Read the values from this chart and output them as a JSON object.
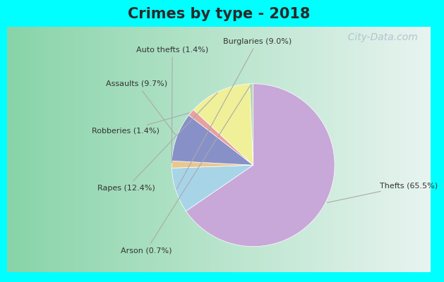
{
  "title": "Crimes by type - 2018",
  "title_fontsize": 15,
  "title_fontweight": "bold",
  "title_color": "#2a2a2a",
  "slices": [
    {
      "label": "Thefts (65.5%)",
      "value": 65.5,
      "color": "#C8A8D8"
    },
    {
      "label": "Burglaries (9.0%)",
      "value": 9.0,
      "color": "#A8D4E8"
    },
    {
      "label": "Auto thefts (1.4%)",
      "value": 1.4,
      "color": "#E8C890"
    },
    {
      "label": "Assaults (9.7%)",
      "value": 9.7,
      "color": "#8890C8"
    },
    {
      "label": "Robberies (1.4%)",
      "value": 1.4,
      "color": "#E8A0A0"
    },
    {
      "label": "Rapes (12.4%)",
      "value": 12.4,
      "color": "#F0F098"
    },
    {
      "label": "Arson (0.7%)",
      "value": 0.7,
      "color": "#B8D8B0"
    }
  ],
  "bg_cyan": "#00FFFF",
  "bg_green_left": "#88D4A8",
  "bg_white_right": "#E8F4F0",
  "watermark": "  City-Data.com",
  "watermark_color": "#AABCCC",
  "watermark_fontsize": 10,
  "label_fontsize": 8,
  "label_color": "#333333",
  "line_color": "#AAAAAA",
  "edge_color": "white",
  "edge_lw": 0.5,
  "startangle": 90,
  "counterclock": false
}
